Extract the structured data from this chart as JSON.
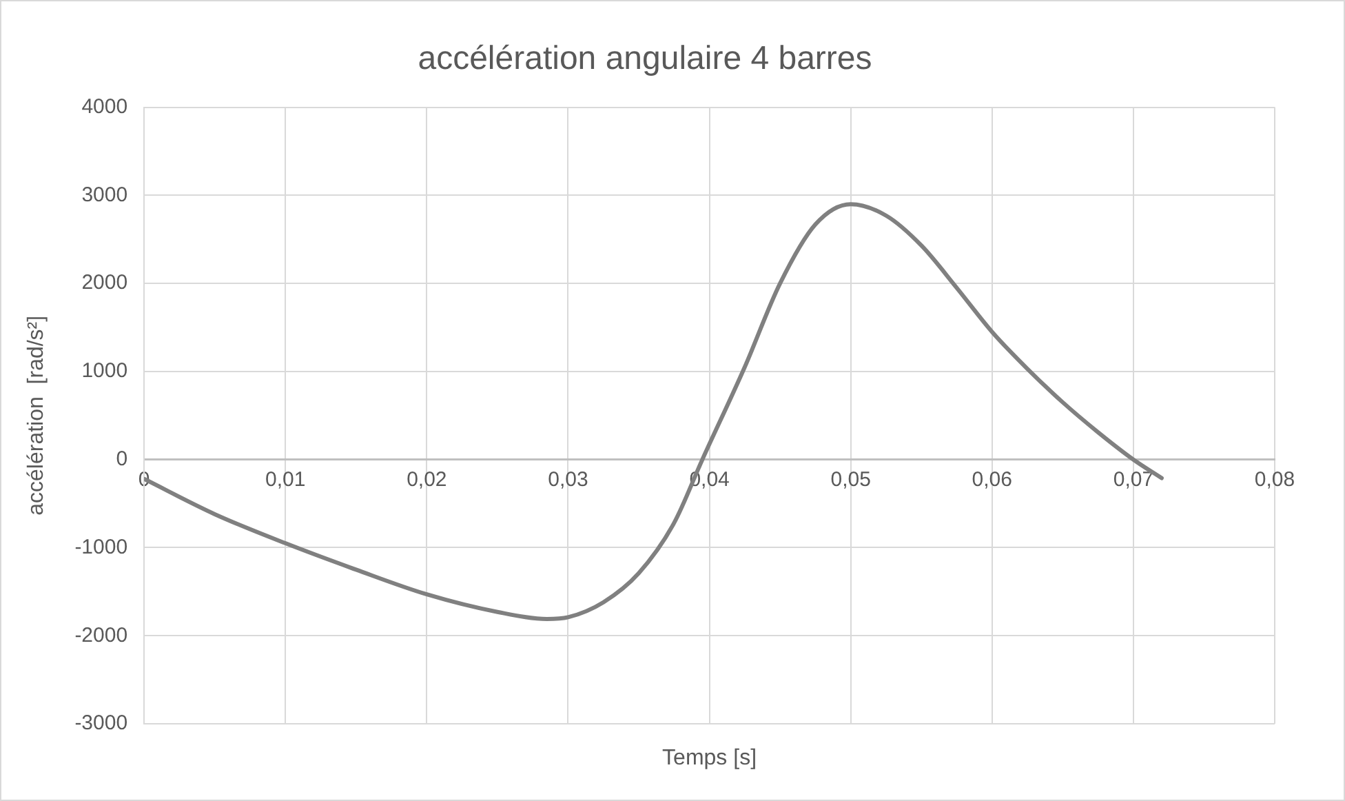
{
  "chart_data": {
    "type": "line",
    "title": "accélération angulaire 4 barres",
    "xlabel": "Temps [s]",
    "ylabel": "accélération  [rad/s²]",
    "x": [
      0,
      0.005,
      0.01,
      0.015,
      0.02,
      0.025,
      0.0285,
      0.03,
      0.0325,
      0.035,
      0.0375,
      0.0395,
      0.0425,
      0.045,
      0.0475,
      0.05,
      0.0525,
      0.055,
      0.0575,
      0.06,
      0.0625,
      0.065,
      0.0675,
      0.07,
      0.072
    ],
    "series": [
      {
        "color": "#808080",
        "values": [
          -220,
          -620,
          -950,
          -1250,
          -1530,
          -1730,
          -1810,
          -1790,
          -1620,
          -1290,
          -720,
          0,
          1050,
          2000,
          2670,
          2900,
          2770,
          2430,
          1950,
          1450,
          1030,
          650,
          310,
          0,
          -210
        ]
      }
    ],
    "xlim": [
      0,
      0.08
    ],
    "xticks": [
      0,
      {
        "value": 0.01,
        "label": "0,01"
      },
      {
        "value": 0.02,
        "label": "0,02"
      },
      {
        "value": 0.03,
        "label": "0,03"
      },
      {
        "value": 0.04,
        "label": "0,04"
      },
      {
        "value": 0.05,
        "label": "0,05"
      },
      {
        "value": 0.06,
        "label": "0,06"
      },
      {
        "value": 0.07,
        "label": "0,07"
      },
      {
        "value": 0.08,
        "label": "0,08"
      }
    ],
    "ylim": [
      -3000,
      4000
    ],
    "yticks": [
      -3000,
      -2000,
      -1000,
      0,
      1000,
      2000,
      3000,
      4000
    ],
    "grid": true,
    "legend": false,
    "marker": "none",
    "line_style": "solid"
  }
}
